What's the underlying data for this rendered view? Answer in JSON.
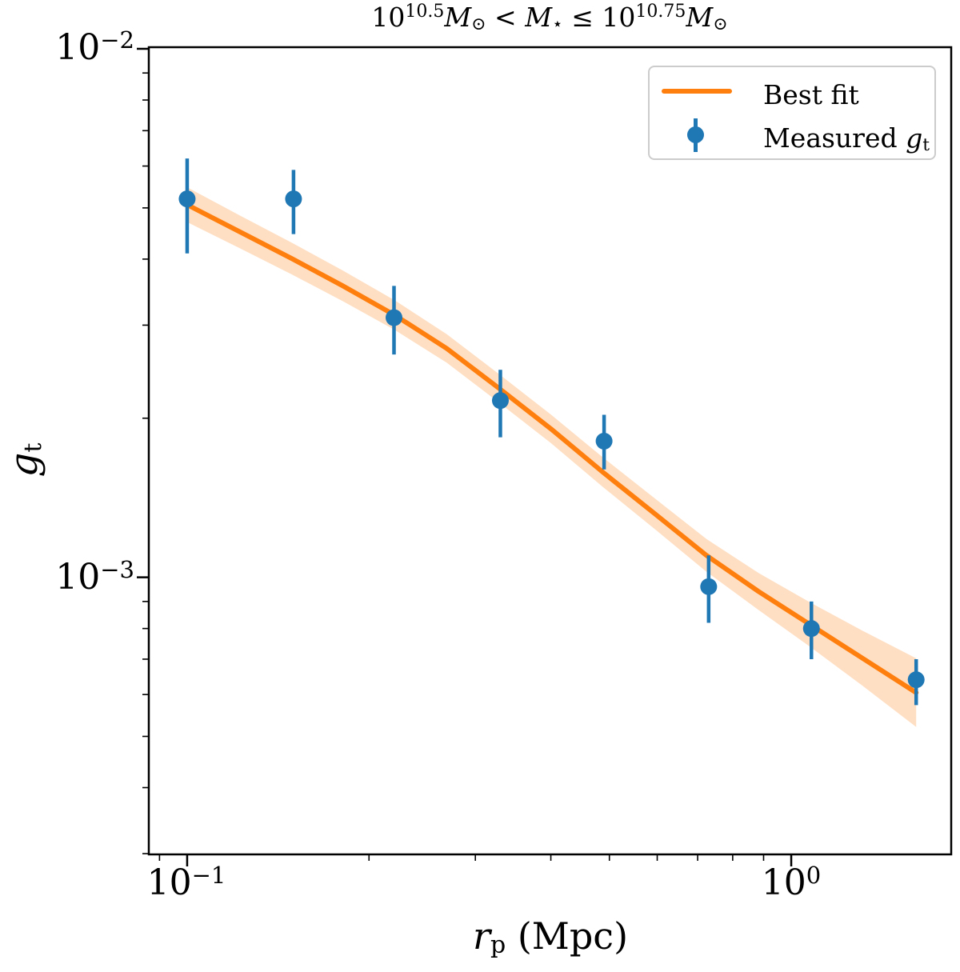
{
  "figure": {
    "title_segments": [
      {
        "t": "10"
      },
      {
        "t": "10.5",
        "style": "sup"
      },
      {
        "t": "M",
        "style": "it"
      },
      {
        "t": "⊙",
        "style": "sub"
      },
      {
        "t": " < "
      },
      {
        "t": "M",
        "style": "it"
      },
      {
        "t": "⋆",
        "style": "sub"
      },
      {
        "t": " ≤ "
      },
      {
        "t": "10"
      },
      {
        "t": "10.75",
        "style": "sup"
      },
      {
        "t": "M",
        "style": "it"
      },
      {
        "t": "⊙",
        "style": "sub"
      }
    ],
    "colors": {
      "fit_line": "#ff7f0e",
      "band_fill": "#ff7f0e",
      "band_opacity": "0.25",
      "data_points": "#1f77b4",
      "axis": "#000000",
      "legend_border": "#cccccc"
    },
    "axes": {
      "x": {
        "label_segments": [
          {
            "t": "r",
            "style": "it"
          },
          {
            "t": "p",
            "style": "sub"
          },
          {
            "t": " (Mpc)"
          }
        ],
        "scale": "log",
        "major_ticks": [
          {
            "value": 0.1,
            "base": "10",
            "exp": "−1"
          },
          {
            "value": 1.0,
            "base": "10",
            "exp": "0"
          }
        ],
        "minor_ticks": [
          0.09,
          0.2,
          0.3,
          0.4,
          0.5,
          0.6,
          0.7,
          0.8,
          0.9
        ]
      },
      "y": {
        "label_segments": [
          {
            "t": "g",
            "style": "it"
          },
          {
            "t": "t",
            "style": "sub"
          }
        ],
        "scale": "log",
        "major_ticks": [
          {
            "value": 0.01,
            "base": "10",
            "exp": "−2"
          },
          {
            "value": 0.001,
            "base": "10",
            "exp": "−3"
          }
        ],
        "minor_ticks": [
          0.009,
          0.008,
          0.007,
          0.006,
          0.005,
          0.004,
          0.003,
          0.002,
          0.0009,
          0.0008,
          0.0007,
          0.0006,
          0.0005,
          0.0004,
          0.0003
        ]
      }
    },
    "legend": {
      "entries": [
        {
          "symbol": "line",
          "label_segments": [
            {
              "t": "Best fit"
            }
          ]
        },
        {
          "symbol": "errorbar-marker",
          "label_segments": [
            {
              "t": "Measured "
            },
            {
              "t": "g",
              "style": "it"
            },
            {
              "t": "t",
              "style": "sub"
            }
          ]
        }
      ]
    }
  },
  "chart_data": {
    "type": "line",
    "subtype": "best-fit line with confidence band + scatter with errorbars",
    "title": "10^10.5 Msun < Mstar <= 10^10.75 Msun",
    "xlabel": "r_p (Mpc)",
    "ylabel": "g_t",
    "x_scale": "log",
    "y_scale": "log",
    "xlim": [
      0.0864,
      1.84
    ],
    "ylim": [
      0.000299,
      0.01007
    ],
    "grid": false,
    "legend_position": "upper right",
    "series": [
      {
        "name": "Measured g_t",
        "type": "scatter-errorbar",
        "color": "#1f77b4",
        "x": [
          0.1,
          0.15,
          0.22,
          0.33,
          0.49,
          0.73,
          1.08,
          1.61
        ],
        "y": [
          0.0052,
          0.0052,
          0.0031,
          0.00216,
          0.00181,
          0.00096,
          0.0008,
          0.00064
        ],
        "y_err_high": [
          0.0062,
          0.0059,
          0.00356,
          0.00247,
          0.00203,
          0.0011,
          0.0009,
          0.0007
        ],
        "y_err_low": [
          0.0041,
          0.00446,
          0.00264,
          0.00184,
          0.0016,
          0.00082,
          0.0007,
          0.000573
        ]
      },
      {
        "name": "Best fit",
        "type": "line-with-band",
        "color": "#ff7f0e",
        "x": [
          0.1,
          0.122,
          0.149,
          0.181,
          0.221,
          0.269,
          0.328,
          0.4,
          0.488,
          0.594,
          0.724,
          0.883,
          1.076,
          1.312,
          1.61
        ],
        "y": [
          0.00507,
          0.00451,
          0.00401,
          0.00356,
          0.00313,
          0.00271,
          0.00228,
          0.00191,
          0.00158,
          0.00132,
          0.0011,
          0.00094,
          0.000813,
          0.000703,
          0.000605
        ],
        "band_halfwidth_dex": [
          0.033,
          0.031,
          0.03,
          0.029,
          0.028,
          0.027,
          0.027,
          0.027,
          0.028,
          0.029,
          0.031,
          0.035,
          0.042,
          0.052,
          0.065
        ]
      }
    ]
  }
}
